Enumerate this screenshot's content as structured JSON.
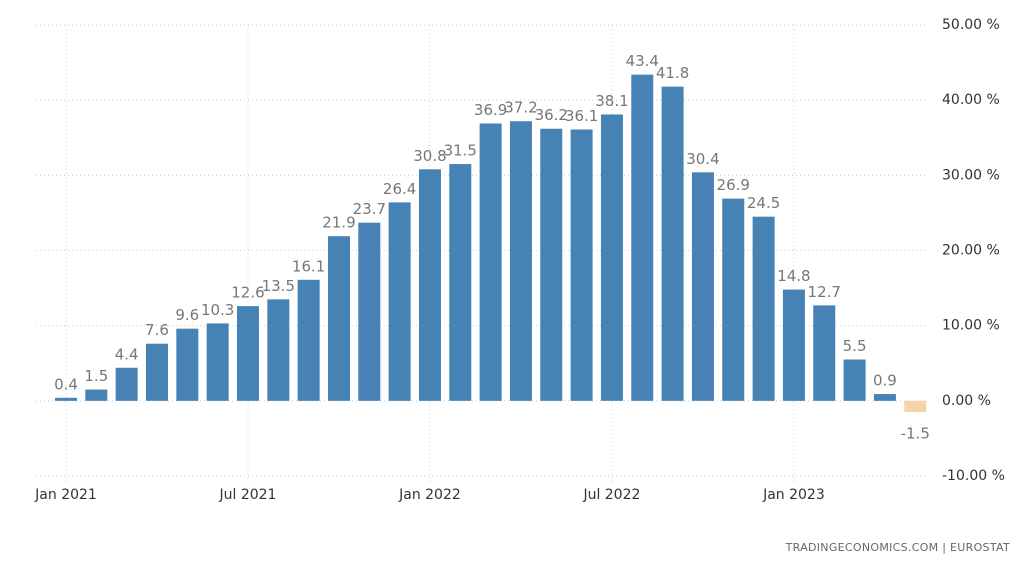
{
  "chart_data": {
    "type": "bar",
    "categories": [
      "Jan 2021",
      null,
      null,
      null,
      null,
      null,
      "Jul 2021",
      null,
      null,
      null,
      null,
      null,
      "Jan 2022",
      null,
      null,
      null,
      null,
      null,
      "Jul 2022",
      null,
      null,
      null,
      null,
      null,
      "Jan 2023",
      null,
      null,
      null,
      null
    ],
    "values": [
      0.4,
      1.5,
      4.4,
      7.6,
      9.6,
      10.3,
      12.6,
      13.5,
      16.1,
      21.9,
      23.7,
      26.4,
      30.8,
      31.5,
      36.9,
      37.2,
      36.2,
      36.1,
      38.1,
      43.4,
      41.8,
      30.4,
      26.9,
      24.5,
      14.8,
      12.7,
      5.5,
      0.9,
      -1.5
    ],
    "color": "#4682b4",
    "negative_color": "#f3d5a9",
    "ylim": [
      -10,
      50
    ],
    "yticks": [
      {
        "value": -10,
        "label": "-10.00 %"
      },
      {
        "value": 0,
        "label": "0.00 %"
      },
      {
        "value": 10,
        "label": "10.00 %"
      },
      {
        "value": 20,
        "label": "20.00 %"
      },
      {
        "value": 30,
        "label": "30.00 %"
      },
      {
        "value": 40,
        "label": "40.00 %"
      },
      {
        "value": 50,
        "label": "50.00 %"
      }
    ],
    "grid": true,
    "source": "TRADINGECONOMICS.COM  |  EUROSTAT"
  }
}
